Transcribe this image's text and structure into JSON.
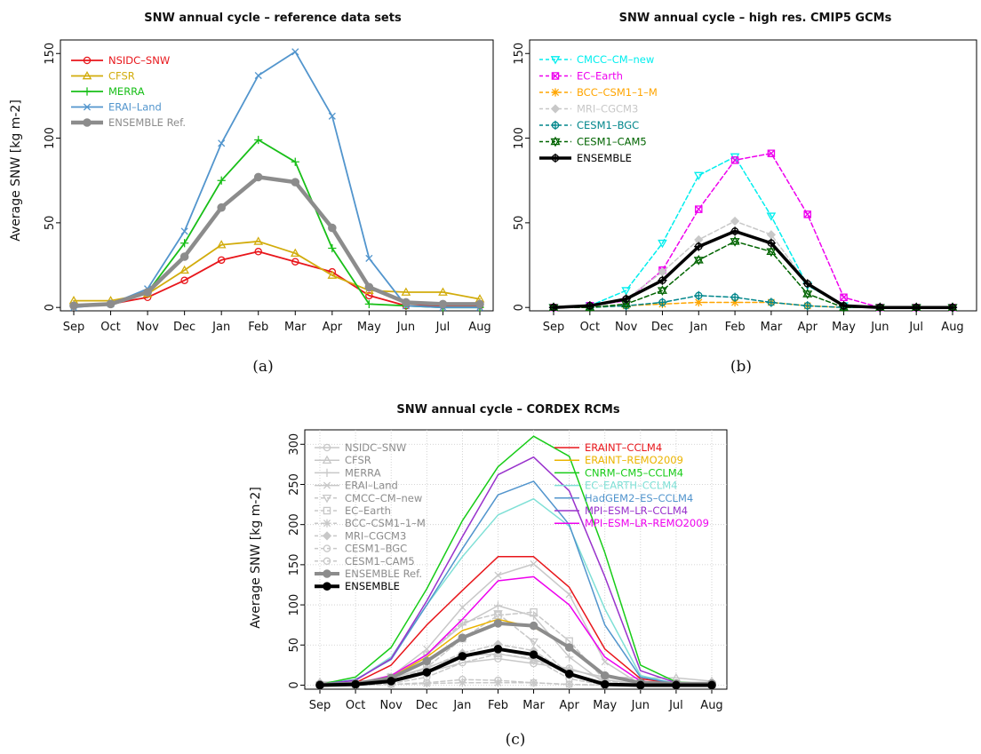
{
  "chart_data": [
    {
      "panel": "a",
      "type": "line",
      "title": "SNW annual cycle – reference data sets",
      "ylabel": "Average SNW [kg m-2]",
      "caption": "(a)",
      "categories": [
        "Sep",
        "Oct",
        "Nov",
        "Dec",
        "Jan",
        "Feb",
        "Mar",
        "Apr",
        "May",
        "Jun",
        "Jul",
        "Aug"
      ],
      "yticks": [
        0,
        50,
        100,
        150
      ],
      "ylim": [
        -2,
        158
      ],
      "legend_position": "top-left",
      "series": [
        {
          "name": "NSIDC–SNW",
          "color": "#e8161b",
          "marker": "circle",
          "width": 1.8,
          "dash": "solid",
          "values": [
            1,
            2,
            6,
            16,
            28,
            33,
            27,
            21,
            7,
            1,
            1,
            1
          ]
        },
        {
          "name": "CFSR",
          "color": "#d2ac0c",
          "marker": "triangle",
          "width": 1.8,
          "dash": "solid",
          "values": [
            4,
            4,
            8,
            22,
            37,
            39,
            32,
            19,
            10,
            9,
            9,
            5
          ]
        },
        {
          "name": "MERRA",
          "color": "#18bf18",
          "marker": "plus",
          "width": 1.8,
          "dash": "solid",
          "values": [
            1,
            2,
            9,
            38,
            75,
            99,
            86,
            35,
            2,
            1,
            0,
            0
          ]
        },
        {
          "name": "ERAI–Land",
          "color": "#5295cd",
          "marker": "cross",
          "width": 1.8,
          "dash": "solid",
          "values": [
            0,
            2,
            11,
            45,
            97,
            137,
            151,
            113,
            29,
            1,
            0,
            0
          ]
        },
        {
          "name": "ENSEMBLE Ref.",
          "color": "#8c8c8c",
          "marker": "circle-filled",
          "width": 4.5,
          "dash": "solid",
          "values": [
            1,
            2,
            9,
            30,
            59,
            77,
            74,
            47,
            12,
            3,
            2,
            2
          ]
        }
      ]
    },
    {
      "panel": "b",
      "type": "line",
      "title": "SNW annual cycle – high res. CMIP5 GCMs",
      "ylabel": "",
      "caption": "(b)",
      "categories": [
        "Sep",
        "Oct",
        "Nov",
        "Dec",
        "Jan",
        "Feb",
        "Mar",
        "Apr",
        "May",
        "Jun",
        "Jul",
        "Aug"
      ],
      "yticks": [
        0,
        50,
        100,
        150
      ],
      "ylim": [
        -2,
        158
      ],
      "legend_position": "top-left",
      "series": [
        {
          "name": "CMCC–CM–new",
          "color": "#00eeee",
          "marker": "triangle-down",
          "width": 1.5,
          "dash": "dashed",
          "values": [
            0,
            1,
            10,
            38,
            78,
            89,
            54,
            13,
            1,
            0,
            0,
            0
          ]
        },
        {
          "name": "EC–Earth",
          "color": "#ee00ee",
          "marker": "square-x",
          "width": 1.5,
          "dash": "dashed",
          "values": [
            0,
            1,
            4,
            22,
            58,
            87,
            91,
            55,
            6,
            0,
            0,
            0
          ]
        },
        {
          "name": "BCC–CSM1–1–M",
          "color": "#ffa500",
          "marker": "asterisk",
          "width": 1.5,
          "dash": "dashed",
          "values": [
            0,
            0,
            1,
            2,
            3,
            3,
            3,
            1,
            0,
            0,
            0,
            0
          ]
        },
        {
          "name": "MRI–CGCM3",
          "color": "#c8c8c8",
          "marker": "diamond",
          "width": 1.5,
          "dash": "dashed",
          "values": [
            0,
            1,
            5,
            21,
            40,
            51,
            43,
            14,
            1,
            0,
            0,
            0
          ]
        },
        {
          "name": "CESM1–BGC",
          "color": "#00868b",
          "marker": "circle-plus",
          "width": 1.5,
          "dash": "dashed",
          "values": [
            0,
            0,
            1,
            3,
            7,
            6,
            3,
            1,
            0,
            0,
            0,
            0
          ]
        },
        {
          "name": "CESM1–CAM5",
          "color": "#006400",
          "marker": "star",
          "width": 1.5,
          "dash": "dashed",
          "values": [
            0,
            0,
            2,
            10,
            28,
            39,
            33,
            8,
            0,
            0,
            0,
            0
          ]
        },
        {
          "name": "ENSEMBLE",
          "color": "#000000",
          "marker": "circle-plus",
          "width": 3.5,
          "dash": "solid",
          "values": [
            0,
            1,
            5,
            16,
            36,
            45,
            38,
            14,
            1,
            0,
            0,
            0
          ]
        }
      ]
    },
    {
      "panel": "c",
      "type": "line",
      "title": "SNW annual cycle – CORDEX RCMs",
      "ylabel": "Average SNW [kg m-2]",
      "caption": "(c)",
      "categories": [
        "Sep",
        "Oct",
        "Nov",
        "Dec",
        "Jan",
        "Feb",
        "Mar",
        "Apr",
        "May",
        "Jun",
        "Jul",
        "Aug"
      ],
      "yticks": [
        0,
        50,
        100,
        150,
        200,
        250,
        300
      ],
      "ylim": [
        -5,
        318
      ],
      "grid": true,
      "legend_position": "top-left and top-right",
      "series": [
        {
          "name": "NSIDC–SNW",
          "color": "#c8c8c8",
          "marker": "circle",
          "width": 1.5,
          "dash": "solid",
          "values": [
            1,
            2,
            6,
            16,
            28,
            33,
            27,
            21,
            7,
            1,
            1,
            1
          ]
        },
        {
          "name": "CFSR",
          "color": "#c8c8c8",
          "marker": "triangle",
          "width": 1.5,
          "dash": "solid",
          "values": [
            4,
            4,
            8,
            22,
            37,
            39,
            32,
            19,
            10,
            9,
            9,
            5
          ]
        },
        {
          "name": "MERRA",
          "color": "#c8c8c8",
          "marker": "plus",
          "width": 1.5,
          "dash": "solid",
          "values": [
            1,
            2,
            9,
            38,
            75,
            99,
            86,
            35,
            2,
            1,
            0,
            0
          ]
        },
        {
          "name": "ERAI–Land",
          "color": "#c8c8c8",
          "marker": "cross",
          "width": 1.5,
          "dash": "solid",
          "values": [
            0,
            2,
            11,
            45,
            97,
            137,
            151,
            113,
            29,
            1,
            0,
            0
          ]
        },
        {
          "name": "CMCC–CM–new",
          "color": "#c8c8c8",
          "marker": "triangle-down",
          "width": 1.5,
          "dash": "dashed",
          "values": [
            0,
            1,
            10,
            38,
            78,
            89,
            54,
            13,
            1,
            0,
            0,
            0
          ]
        },
        {
          "name": "EC–Earth",
          "color": "#c8c8c8",
          "marker": "square",
          "width": 1.5,
          "dash": "dashed",
          "values": [
            0,
            1,
            4,
            22,
            58,
            87,
            91,
            55,
            6,
            0,
            0,
            0
          ]
        },
        {
          "name": "BCC–CSM1–1–M",
          "color": "#c8c8c8",
          "marker": "asterisk",
          "width": 1.5,
          "dash": "dashed",
          "values": [
            0,
            0,
            1,
            2,
            3,
            3,
            3,
            1,
            0,
            0,
            0,
            0
          ]
        },
        {
          "name": "MRI–CGCM3",
          "color": "#c8c8c8",
          "marker": "diamond",
          "width": 1.5,
          "dash": "dashed",
          "values": [
            0,
            1,
            5,
            21,
            40,
            51,
            43,
            14,
            1,
            0,
            0,
            0
          ]
        },
        {
          "name": "CESM1–BGC",
          "color": "#c8c8c8",
          "marker": "circle",
          "width": 1.5,
          "dash": "dashed",
          "values": [
            0,
            0,
            1,
            3,
            7,
            6,
            3,
            1,
            0,
            0,
            0,
            0
          ]
        },
        {
          "name": "CESM1–CAM5",
          "color": "#c8c8c8",
          "marker": "circle",
          "width": 1.5,
          "dash": "dashed",
          "values": [
            0,
            0,
            2,
            10,
            28,
            39,
            33,
            8,
            0,
            0,
            0,
            0
          ]
        },
        {
          "name": "ENSEMBLE Ref.",
          "color": "#8c8c8c",
          "marker": "circle-filled",
          "width": 4,
          "dash": "solid",
          "values": [
            1,
            2,
            9,
            30,
            59,
            77,
            74,
            47,
            12,
            3,
            2,
            2
          ]
        },
        {
          "name": "ENSEMBLE",
          "color": "#000000",
          "marker": "circle-filled",
          "width": 4,
          "dash": "solid",
          "values": [
            0,
            1,
            5,
            16,
            36,
            45,
            38,
            14,
            1,
            0,
            0,
            0
          ]
        },
        {
          "name": "ERAINT–CCLM4",
          "color": "#e8161b",
          "marker": "none",
          "width": 1.5,
          "dash": "solid",
          "values": [
            1,
            3,
            25,
            75,
            118,
            160,
            160,
            122,
            45,
            8,
            2,
            1
          ]
        },
        {
          "name": "ERAINT–REMO2009",
          "color": "#ebb400",
          "marker": "none",
          "width": 1.5,
          "dash": "solid",
          "values": [
            1,
            2,
            10,
            35,
            68,
            82,
            72,
            48,
            12,
            3,
            1,
            1
          ]
        },
        {
          "name": "CNRM–CM5–CCLM4",
          "color": "#18cc18",
          "marker": "none",
          "width": 1.5,
          "dash": "solid",
          "values": [
            1,
            10,
            47,
            120,
            205,
            272,
            310,
            285,
            165,
            25,
            4,
            2
          ]
        },
        {
          "name": "EC–EARTH–CCLM4",
          "color": "#7fe0d6",
          "marker": "none",
          "width": 1.5,
          "dash": "solid",
          "values": [
            1,
            6,
            35,
            100,
            160,
            212,
            232,
            198,
            95,
            12,
            2,
            1
          ]
        },
        {
          "name": "HadGEM2–ES–CCLM4",
          "color": "#5295cd",
          "marker": "none",
          "width": 1.5,
          "dash": "solid",
          "values": [
            1,
            7,
            32,
            100,
            170,
            237,
            254,
            200,
            75,
            10,
            2,
            1
          ]
        },
        {
          "name": "MPI–ESM–LR–CCLM4",
          "color": "#9932cc",
          "marker": "none",
          "width": 1.5,
          "dash": "solid",
          "values": [
            1,
            6,
            33,
            105,
            185,
            262,
            284,
            242,
            135,
            18,
            3,
            1
          ]
        },
        {
          "name": "MPI–ESM–LR–REMO2009",
          "color": "#ee00ee",
          "marker": "none",
          "width": 1.5,
          "dash": "solid",
          "values": [
            1,
            2,
            12,
            38,
            82,
            130,
            135,
            100,
            35,
            5,
            1,
            1
          ]
        }
      ]
    }
  ]
}
